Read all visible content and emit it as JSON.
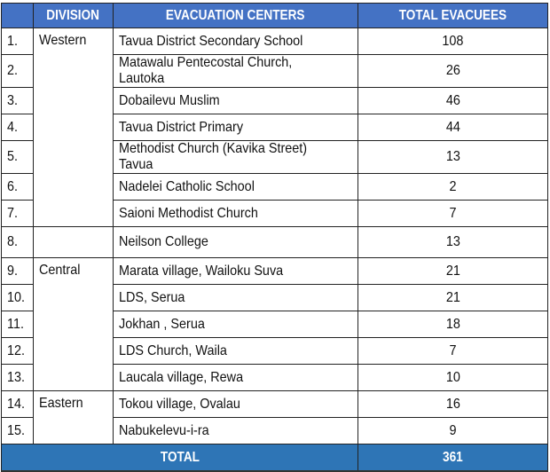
{
  "header": {
    "number": "",
    "division": "DIVISION",
    "centers": "EVACUATION CENTERS",
    "total": "TOTAL EVACUEES"
  },
  "rows": [
    {
      "no": "1.",
      "division": "Western",
      "center": "Tavua District Secondary School",
      "evacuees": "108"
    },
    {
      "no": "2.",
      "division": "",
      "center": "Matawalu Pentecostal Church, Lautoka",
      "evacuees": "26"
    },
    {
      "no": "3.",
      "division": "",
      "center": "Dobailevu Muslim",
      "evacuees": "46"
    },
    {
      "no": "4.",
      "division": "",
      "center": "Tavua District Primary",
      "evacuees": "44"
    },
    {
      "no": "5.",
      "division": "",
      "center": "Methodist Church (Kavika Street) Tavua",
      "evacuees": "13"
    },
    {
      "no": "6.",
      "division": "",
      "center": "Nadelei Catholic School",
      "evacuees": "2"
    },
    {
      "no": "7.",
      "division": "",
      "center": "Saioni Methodist Church",
      "evacuees": "7"
    },
    {
      "no": "8.",
      "division": "",
      "center": "Neilson College",
      "evacuees": "13"
    },
    {
      "no": "9.",
      "division": "Central",
      "center": "Marata village, Wailoku Suva",
      "evacuees": "21"
    },
    {
      "no": "10.",
      "division": "",
      "center": "LDS, Serua",
      "evacuees": "21"
    },
    {
      "no": "11.",
      "division": "",
      "center": "Jokhan , Serua",
      "evacuees": "18"
    },
    {
      "no": "12.",
      "division": "",
      "center": "LDS Church, Waila",
      "evacuees": "7"
    },
    {
      "no": "13.",
      "division": "",
      "center": "Laucala village, Rewa",
      "evacuees": "10"
    },
    {
      "no": "14.",
      "division": "Eastern",
      "center": "Tokou village, Ovalau",
      "evacuees": "16"
    },
    {
      "no": "15.",
      "division": "",
      "center": "Nabukelevu-i-ra",
      "evacuees": "9"
    }
  ],
  "footer": {
    "label": "TOTAL",
    "value": "361"
  },
  "colors": {
    "header_bg": "#4472c4",
    "total_bg": "#2e75b6"
  }
}
